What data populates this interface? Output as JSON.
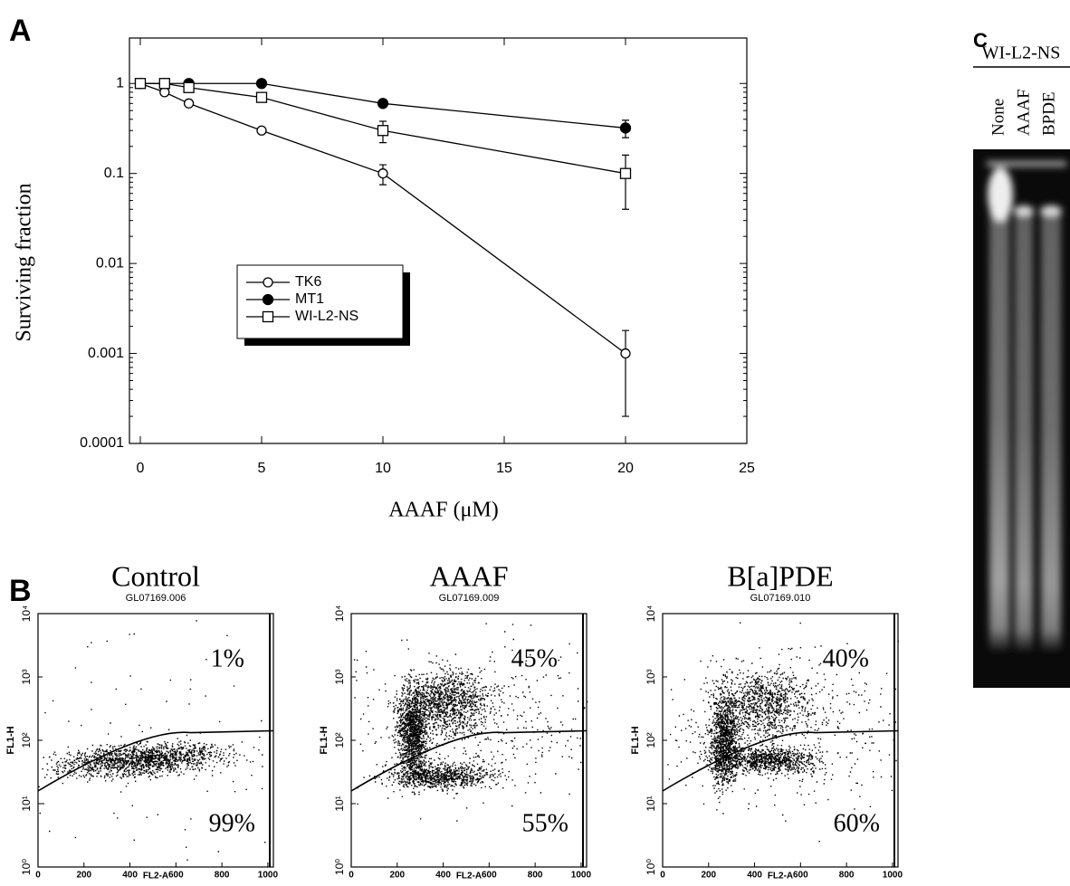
{
  "chart_data": {
    "type": "line",
    "panel": "A",
    "ylabel": "Surviving fraction",
    "xlabel": "AAAF (μM)",
    "x": [
      0,
      1,
      2,
      5,
      10,
      20
    ],
    "series": [
      {
        "name": "TK6",
        "color": "#000000",
        "marker": "open-circle",
        "values": [
          1,
          0.8,
          0.6,
          0.3,
          0.1,
          0.001
        ],
        "errors": [
          null,
          null,
          null,
          null,
          0.025,
          0.0008
        ]
      },
      {
        "name": "MT1",
        "color": "#000000",
        "marker": "filled-circle",
        "values": [
          1,
          1,
          1,
          1,
          0.6,
          0.32
        ],
        "errors": [
          null,
          null,
          null,
          null,
          null,
          0.07
        ]
      },
      {
        "name": "WI-L2-NS",
        "color": "#000000",
        "marker": "open-square",
        "values": [
          1,
          1,
          0.9,
          0.7,
          0.3,
          0.1
        ],
        "errors": [
          null,
          null,
          null,
          null,
          0.08,
          0.06
        ]
      }
    ],
    "xlim": [
      0,
      25
    ],
    "xticks": [
      0,
      5,
      10,
      15,
      20,
      25
    ],
    "ylim": [
      0.0001,
      3.2
    ],
    "yticks": [
      0.0001,
      0.001,
      0.01,
      0.1,
      1
    ],
    "ylog": true,
    "grid": false,
    "legend": "center-left"
  },
  "panel_b": {
    "label": "B",
    "xlabel": "FL2-A",
    "ylabel": "FL1-H",
    "xlim": [
      0,
      1024
    ],
    "xticks": [
      0,
      200,
      400,
      600,
      800,
      1000
    ],
    "ylim": [
      1,
      10000
    ],
    "yticks": [
      {
        "value": 1,
        "label": "10⁰"
      },
      {
        "value": 10,
        "label": "10¹"
      },
      {
        "value": 100,
        "label": "10²"
      },
      {
        "value": 1000,
        "label": "10³"
      },
      {
        "value": 10000,
        "label": "10⁴"
      }
    ],
    "plots": [
      {
        "title": "Control",
        "sample": "GL07169.006",
        "upper": "1%",
        "lower": "99%"
      },
      {
        "title": "AAAF",
        "sample": "GL07169.009",
        "upper": "45%",
        "lower": "55%"
      },
      {
        "title": "B[a]PDE",
        "sample": "GL07169.010",
        "upper": "40%",
        "lower": "60%"
      }
    ]
  },
  "panel_c": {
    "label": "C",
    "cell_line": "WI-L2-NS",
    "lanes": [
      "None",
      "AAAF",
      "BPDE"
    ]
  }
}
